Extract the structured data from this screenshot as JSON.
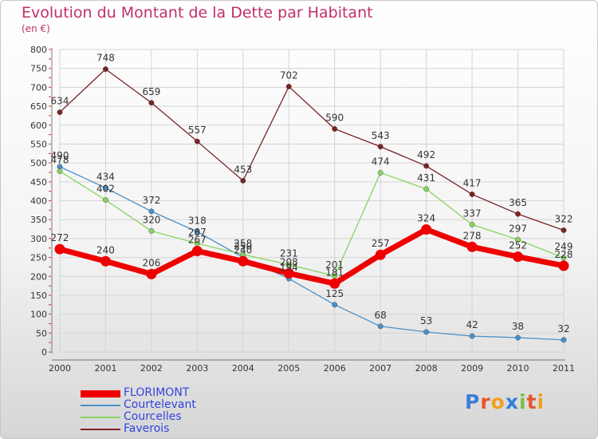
{
  "title": "Evolution du Montant de la Dette par Habitant",
  "subtitle": "(en €)",
  "logo": {
    "text": "Proxiti",
    "letters": [
      "P",
      "r",
      "o",
      "x",
      "i",
      "t",
      "i"
    ],
    "letter_colors": [
      "#3a7fd8",
      "#e8552a",
      "#f0a020",
      "#2f7fd8",
      "#7cbf3a",
      "#e8552a",
      "#f0a020"
    ]
  },
  "chart_data": {
    "type": "line",
    "title": "Evolution du Montant de la Dette par Habitant",
    "subtitle": "(en €)",
    "xlabel": "",
    "ylabel": "",
    "x": [
      "2000",
      "2001",
      "2002",
      "2003",
      "2004",
      "2005",
      "2006",
      "2007",
      "2008",
      "2009",
      "2010",
      "2011"
    ],
    "ylim": [
      0,
      800
    ],
    "yticks": [
      "0",
      "50",
      "100",
      "150",
      "200",
      "250",
      "300",
      "350",
      "400",
      "450",
      "500",
      "550",
      "600",
      "650",
      "700",
      "750",
      "800"
    ],
    "grid": true,
    "legend_position": "bottom-left",
    "series": [
      {
        "name": "Faverois",
        "color": "#7a2424",
        "values": [
          634,
          748,
          659,
          557,
          453,
          702,
          590,
          543,
          492,
          417,
          365,
          322
        ]
      },
      {
        "name": "Courtelevant",
        "color": "#4a90c8",
        "values": [
          490,
          434,
          372,
          318,
          250,
          194,
          125,
          68,
          53,
          42,
          38,
          32
        ]
      },
      {
        "name": "Courcelles",
        "color": "#88d460",
        "values": [
          478,
          402,
          320,
          287,
          258,
          231,
          201,
          474,
          431,
          337,
          297,
          249
        ]
      },
      {
        "name": "FLORIMONT",
        "color": "#ee0000",
        "values": [
          272,
          240,
          206,
          267,
          240,
          208,
          181,
          257,
          324,
          278,
          252,
          228
        ]
      }
    ]
  }
}
